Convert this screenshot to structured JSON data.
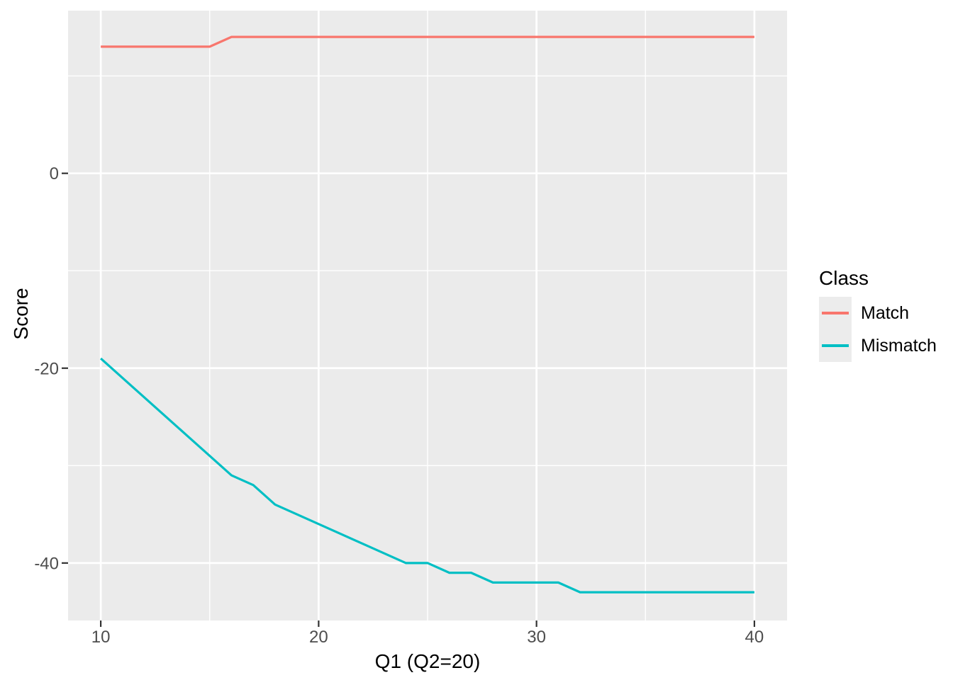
{
  "figure": {
    "background": "#FFFFFF",
    "panel_background": "#EBEBEB",
    "grid_color": "#FFFFFF",
    "tick_mark_color": "#333333",
    "tick_label_color": "#4D4D4D",
    "title_color": "#000000"
  },
  "chart_data": {
    "type": "line",
    "title": "",
    "xlabel": "Q1 (Q2=20)",
    "ylabel": "Score",
    "legend_title": "Class",
    "legend_position": "right",
    "grid": true,
    "xlim": [
      8.5,
      41.5
    ],
    "ylim": [
      -45.9,
      16.7
    ],
    "x_major_ticks": [
      10,
      20,
      30,
      40
    ],
    "x_minor_gridlines": [
      15,
      25,
      35
    ],
    "y_major_ticks": [
      0,
      -20,
      -40
    ],
    "y_minor_gridlines": [
      10,
      -10,
      -30
    ],
    "x": [
      10,
      11,
      12,
      13,
      14,
      15,
      16,
      17,
      18,
      19,
      20,
      21,
      22,
      23,
      24,
      25,
      26,
      27,
      28,
      29,
      30,
      31,
      32,
      33,
      34,
      35,
      36,
      37,
      38,
      39,
      40
    ],
    "series": [
      {
        "name": "Match",
        "color": "#F8766D",
        "values": [
          13,
          13,
          13,
          13,
          13,
          13,
          14,
          14,
          14,
          14,
          14,
          14,
          14,
          14,
          14,
          14,
          14,
          14,
          14,
          14,
          14,
          14,
          14,
          14,
          14,
          14,
          14,
          14,
          14,
          14,
          14
        ]
      },
      {
        "name": "Mismatch",
        "color": "#00BFC4",
        "values": [
          -19,
          -21,
          -23,
          -25,
          -27,
          -29,
          -31,
          -32,
          -34,
          -35,
          -36,
          -37,
          -38,
          -39,
          -40,
          -40,
          -41,
          -41,
          -42,
          -42,
          -42,
          -42,
          -43,
          -43,
          -43,
          -43,
          -43,
          -43,
          -43,
          -43,
          -43
        ]
      }
    ]
  }
}
